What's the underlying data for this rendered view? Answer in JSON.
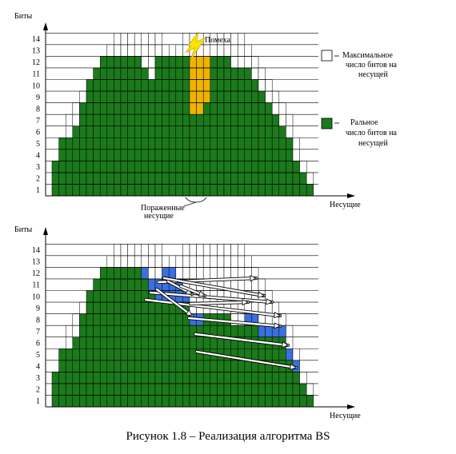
{
  "caption": "Рисунок 1.8 – Реализация алгоритма BS",
  "colors": {
    "real": "#1b7a1b",
    "interference": "#f0b400",
    "moved": "#3b6fe0",
    "grid": "#000000",
    "bolt": "#ffe100"
  },
  "top_chart": {
    "y_axis_label": "Биты",
    "x_axis_label": "Несущие",
    "y_ticks": [
      "1",
      "2",
      "3",
      "4",
      "5",
      "6",
      "7",
      "8",
      "9",
      "10",
      "11",
      "12",
      "13",
      "14"
    ],
    "interference_label": "Помеха",
    "affected_label_line1": "Пораженные",
    "affected_label_line2": "несущие",
    "legend": {
      "max_line1": "Максимальное",
      "max_line2": "число битов на",
      "max_line3": "несущей",
      "real_line1": "Ральное",
      "real_line2": "число битов на",
      "real_line3": "несущей"
    },
    "max_bits": [
      3,
      5,
      7,
      8,
      9,
      10,
      11,
      12,
      13,
      14,
      14,
      14,
      14,
      14,
      14,
      14,
      13,
      12,
      13,
      14,
      14,
      14,
      14,
      14,
      14,
      14,
      14,
      14,
      13,
      12,
      11,
      10,
      9,
      8,
      7,
      5,
      3,
      2
    ],
    "real_bits": [
      3,
      5,
      5,
      6,
      8,
      11,
      12,
      12,
      12,
      12,
      12,
      12,
      12,
      11,
      10,
      12,
      12,
      12,
      12,
      12,
      12,
      12,
      12,
      12,
      12,
      12,
      11,
      11,
      11,
      10,
      9,
      8,
      7,
      6,
      5,
      3,
      2,
      1
    ],
    "interference_bits": [
      0,
      0,
      0,
      0,
      0,
      0,
      0,
      0,
      0,
      0,
      0,
      0,
      0,
      0,
      0,
      0,
      0,
      0,
      0,
      0,
      5,
      5,
      4,
      0,
      0,
      0,
      0,
      0,
      0,
      0,
      0,
      0,
      0,
      0,
      0,
      0,
      0,
      0
    ]
  },
  "bottom_chart": {
    "y_axis_label": "Биты",
    "x_axis_label": "Несущие",
    "y_ticks": [
      "1",
      "2",
      "3",
      "4",
      "5",
      "6",
      "7",
      "8",
      "9",
      "10",
      "11",
      "12",
      "13",
      "14"
    ],
    "max_bits": [
      3,
      5,
      7,
      8,
      9,
      10,
      11,
      12,
      13,
      14,
      14,
      14,
      14,
      14,
      14,
      14,
      13,
      12,
      13,
      14,
      14,
      14,
      14,
      14,
      14,
      14,
      14,
      14,
      13,
      12,
      11,
      10,
      9,
      8,
      7,
      5,
      3,
      2
    ],
    "real_bits": [
      3,
      5,
      5,
      6,
      8,
      11,
      12,
      12,
      12,
      12,
      12,
      12,
      12,
      11,
      10,
      9,
      9,
      9,
      9,
      9,
      7,
      7,
      8,
      8,
      8,
      8,
      7,
      7,
      7,
      7,
      6,
      6,
      6,
      6,
      4,
      3,
      2,
      1
    ],
    "moved_bits": [
      0,
      0,
      0,
      0,
      0,
      0,
      0,
      0,
      0,
      0,
      0,
      0,
      0,
      1,
      1,
      2,
      3,
      3,
      2,
      1,
      1,
      1,
      0,
      0,
      0,
      0,
      0,
      0,
      1,
      1,
      1,
      1,
      1,
      1,
      1,
      1,
      0,
      0
    ]
  }
}
